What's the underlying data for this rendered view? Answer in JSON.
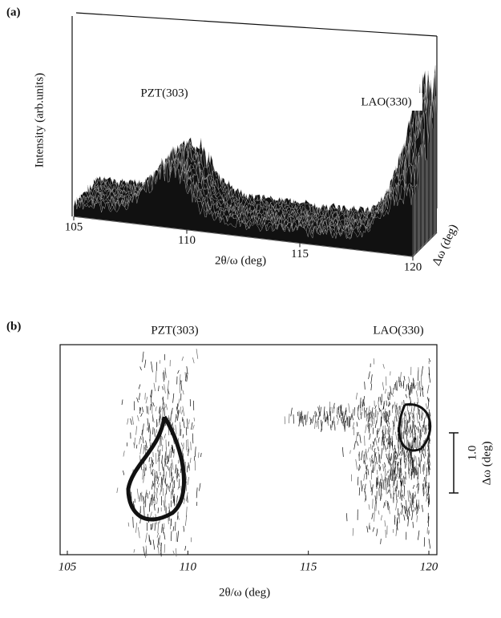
{
  "chart_data": [
    {
      "type": "surface",
      "panel_label": "(a)",
      "x_label": "2θ/ω (deg)",
      "y_label": "Intensity (arb.units)",
      "depth_label": "Δω (deg)",
      "annotations": [
        "PZT(303)",
        "LAO(330)"
      ],
      "xlim": [
        105,
        120
      ],
      "xticks": [
        105,
        110,
        115,
        120
      ]
    },
    {
      "type": "contour",
      "panel_label": "(b)",
      "x_label": "2θ/ω (deg)",
      "y_label": "Δω (deg)",
      "scale_bar_label": "1.0",
      "annotations": [
        "PZT(303)",
        "LAO(330)"
      ],
      "xlim": [
        105,
        120
      ],
      "xticks": [
        105,
        110,
        115,
        120
      ]
    }
  ]
}
